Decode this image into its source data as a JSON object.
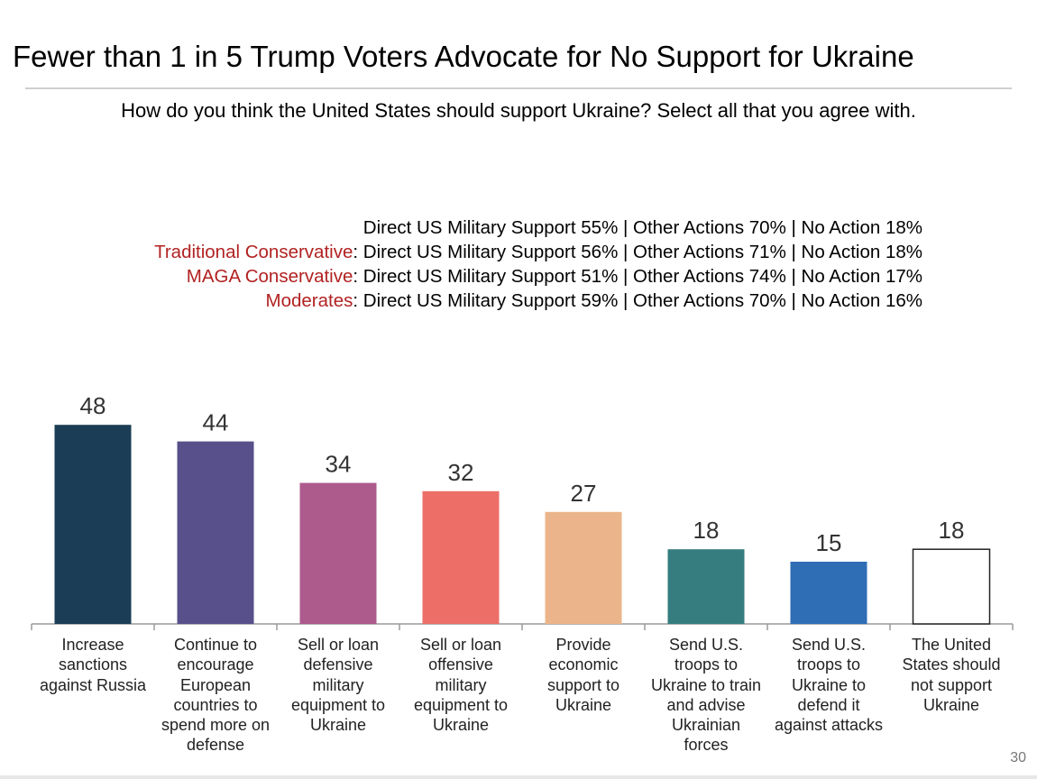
{
  "header": {
    "title": "Fewer than 1 in 5 Trump Voters Advocate for No Support for Ukraine",
    "question": "How do you think the United States should support Ukraine? Select all that you agree with."
  },
  "summary": {
    "rows": [
      {
        "segment": "",
        "text": "Direct US Military Support 55% | Other Actions 70% | No Action 18%"
      },
      {
        "segment": "Traditional Conservative",
        "text": ": Direct US Military Support 56% | Other Actions 71% | No Action 18%"
      },
      {
        "segment": "MAGA Conservative",
        "text": ": Direct US Military Support 51% | Other Actions 74% | No Action 17%"
      },
      {
        "segment": "Moderates",
        "text": ": Direct US Military Support 59% | Other Actions 70% | No Action 16%"
      }
    ]
  },
  "chart_data": {
    "type": "bar",
    "title": "",
    "xlabel": "",
    "ylabel": "",
    "ylim": [
      0,
      50
    ],
    "categories": [
      "Increase sanctions against Russia",
      "Continue to encourage European countries to spend more on defense",
      "Sell or loan defensive military equipment to Ukraine",
      "Sell or loan offensive military equipment to Ukraine",
      "Provide economic support to Ukraine",
      "Send U.S. troops to Ukraine to train and advise Ukrainian forces",
      "Send U.S. troops to Ukraine to defend it against attacks",
      "The United States should not support Ukraine"
    ],
    "category_lines": [
      [
        "Increase",
        "sanctions",
        "against Russia"
      ],
      [
        "Continue to",
        "encourage",
        "European",
        "countries to",
        "spend more on",
        "defense"
      ],
      [
        "Sell or loan",
        "defensive",
        "military",
        "equipment to",
        "Ukraine"
      ],
      [
        "Sell or loan",
        "offensive",
        "military",
        "equipment to",
        "Ukraine"
      ],
      [
        "Provide",
        "economic",
        "support to",
        "Ukraine"
      ],
      [
        "Send U.S.",
        "troops to",
        "Ukraine to train",
        "and advise",
        "Ukrainian",
        "forces"
      ],
      [
        "Send U.S.",
        "troops to",
        "Ukraine to",
        "defend it",
        "against attacks"
      ],
      [
        "The United",
        "States should",
        "not support",
        "Ukraine"
      ]
    ],
    "values": [
      48,
      44,
      34,
      32,
      27,
      18,
      15,
      18
    ],
    "colors": [
      "#1b3d55",
      "#57508a",
      "#ad5a8d",
      "#ec6e67",
      "#ebb48a",
      "#357d7e",
      "#2f6db5",
      "#ffffff"
    ],
    "grid": false
  },
  "footer": {
    "page_number": "30"
  }
}
